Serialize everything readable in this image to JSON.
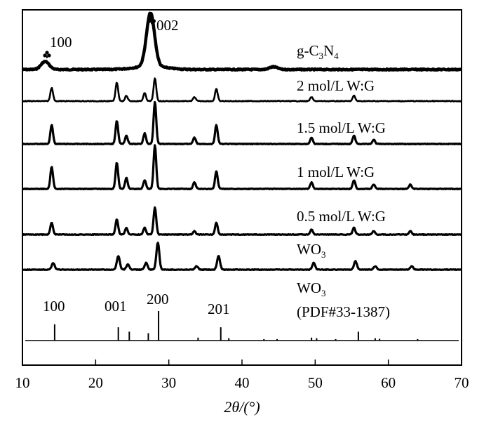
{
  "chart_data": {
    "type": "line",
    "title": "",
    "xlabel": "2θ/(°)",
    "xlim": [
      10,
      70
    ],
    "x_ticks": [
      "10",
      "20",
      "30",
      "40",
      "50",
      "60",
      "70"
    ],
    "y_ticks_visible": false,
    "grid": false,
    "legend": "inline labels at right of each trace",
    "series": [
      {
        "name": "g-C3N4",
        "peaks": [
          {
            "x": 13.1,
            "h": 0.15
          },
          {
            "x": 27.5,
            "h": 1.0
          },
          {
            "x": 44.3,
            "h": 0.05
          }
        ],
        "peak_labels": [
          {
            "x": 13.1,
            "hkl": "100"
          },
          {
            "x": 27.5,
            "hkl": "002"
          }
        ]
      },
      {
        "name": "2 mol/L W:G",
        "peaks": [
          {
            "x": 14.0,
            "h": 0.5
          },
          {
            "x": 22.9,
            "h": 0.7
          },
          {
            "x": 24.2,
            "h": 0.2
          },
          {
            "x": 26.7,
            "h": 0.3
          },
          {
            "x": 28.1,
            "h": 0.85
          },
          {
            "x": 33.5,
            "h": 0.15
          },
          {
            "x": 36.5,
            "h": 0.45
          },
          {
            "x": 49.5,
            "h": 0.15
          },
          {
            "x": 55.3,
            "h": 0.2
          }
        ]
      },
      {
        "name": "1.5 mol/L W:G",
        "peaks": [
          {
            "x": 14.0,
            "h": 0.45
          },
          {
            "x": 22.9,
            "h": 0.55
          },
          {
            "x": 24.2,
            "h": 0.2
          },
          {
            "x": 26.7,
            "h": 0.25
          },
          {
            "x": 28.1,
            "h": 1.0
          },
          {
            "x": 33.5,
            "h": 0.15
          },
          {
            "x": 36.5,
            "h": 0.45
          },
          {
            "x": 49.5,
            "h": 0.15
          },
          {
            "x": 55.3,
            "h": 0.2
          },
          {
            "x": 58.0,
            "h": 0.1
          }
        ]
      },
      {
        "name": "1 mol/L W:G",
        "peaks": [
          {
            "x": 14.0,
            "h": 0.5
          },
          {
            "x": 22.9,
            "h": 0.6
          },
          {
            "x": 24.2,
            "h": 0.25
          },
          {
            "x": 26.7,
            "h": 0.2
          },
          {
            "x": 28.1,
            "h": 1.0
          },
          {
            "x": 33.5,
            "h": 0.15
          },
          {
            "x": 36.5,
            "h": 0.4
          },
          {
            "x": 49.5,
            "h": 0.15
          },
          {
            "x": 55.3,
            "h": 0.2
          },
          {
            "x": 58.0,
            "h": 0.1
          },
          {
            "x": 63.0,
            "h": 0.1
          }
        ]
      },
      {
        "name": "0.5 mol/L W:G",
        "peaks": [
          {
            "x": 14.0,
            "h": 0.35
          },
          {
            "x": 22.9,
            "h": 0.45
          },
          {
            "x": 24.2,
            "h": 0.2
          },
          {
            "x": 26.7,
            "h": 0.2
          },
          {
            "x": 28.1,
            "h": 0.8
          },
          {
            "x": 33.5,
            "h": 0.1
          },
          {
            "x": 36.5,
            "h": 0.35
          },
          {
            "x": 49.5,
            "h": 0.15
          },
          {
            "x": 55.3,
            "h": 0.2
          },
          {
            "x": 58.0,
            "h": 0.1
          },
          {
            "x": 63.0,
            "h": 0.1
          }
        ]
      },
      {
        "name": "WO3",
        "peaks": [
          {
            "x": 14.2,
            "h": 0.2
          },
          {
            "x": 23.1,
            "h": 0.4
          },
          {
            "x": 24.4,
            "h": 0.15
          },
          {
            "x": 26.9,
            "h": 0.2
          },
          {
            "x": 28.5,
            "h": 0.8
          },
          {
            "x": 33.8,
            "h": 0.1
          },
          {
            "x": 36.8,
            "h": 0.4
          },
          {
            "x": 49.8,
            "h": 0.2
          },
          {
            "x": 55.5,
            "h": 0.25
          },
          {
            "x": 58.2,
            "h": 0.1
          },
          {
            "x": 63.2,
            "h": 0.1
          }
        ]
      },
      {
        "name": "WO3 (PDF#33-1387)",
        "type": "stick",
        "sticks": [
          {
            "x": 14.4,
            "h": 0.55
          },
          {
            "x": 23.1,
            "h": 0.45
          },
          {
            "x": 24.6,
            "h": 0.3
          },
          {
            "x": 27.2,
            "h": 0.25
          },
          {
            "x": 28.6,
            "h": 1.0
          },
          {
            "x": 34.0,
            "h": 0.1
          },
          {
            "x": 37.1,
            "h": 0.45
          },
          {
            "x": 38.2,
            "h": 0.08
          },
          {
            "x": 43.0,
            "h": 0.05
          },
          {
            "x": 44.8,
            "h": 0.05
          },
          {
            "x": 49.5,
            "h": 0.1
          },
          {
            "x": 50.2,
            "h": 0.08
          },
          {
            "x": 52.8,
            "h": 0.05
          },
          {
            "x": 55.9,
            "h": 0.3
          },
          {
            "x": 58.2,
            "h": 0.08
          },
          {
            "x": 58.8,
            "h": 0.06
          },
          {
            "x": 64.0,
            "h": 0.05
          }
        ],
        "hkl_labels": [
          {
            "x": 14.4,
            "hkl": "100"
          },
          {
            "x": 23.1,
            "hkl": "001"
          },
          {
            "x": 28.6,
            "hkl": "200"
          },
          {
            "x": 37.1,
            "hkl": "201"
          }
        ]
      }
    ]
  }
}
